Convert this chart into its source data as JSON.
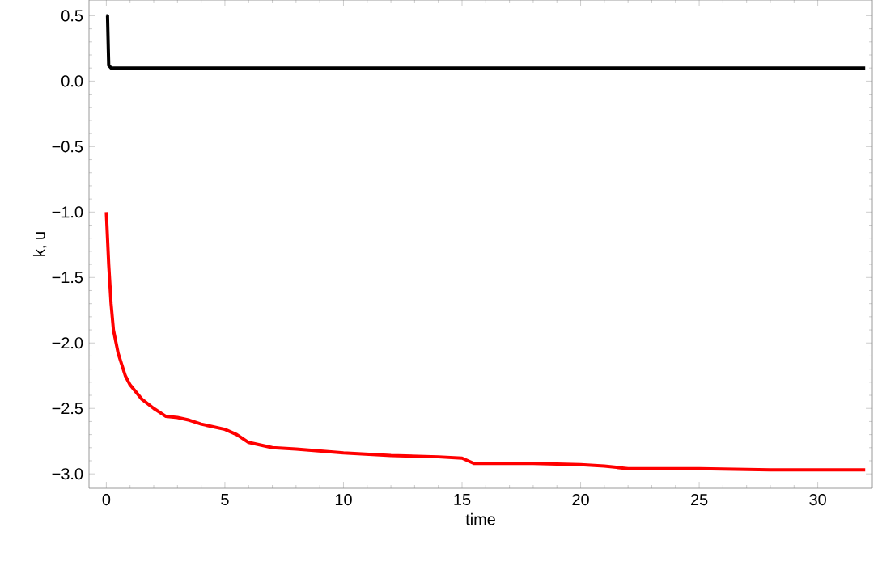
{
  "chart_data": {
    "type": "line",
    "xlabel": "time",
    "ylabel": "k, u",
    "xlim": [
      -0.73,
      32.3
    ],
    "ylim": [
      -3.11,
      0.62
    ],
    "xticks": [
      0,
      5,
      10,
      15,
      20,
      25,
      30
    ],
    "yticks": [
      {
        "value": 0.5,
        "label": "0.5"
      },
      {
        "value": 0,
        "label": "0.0"
      },
      {
        "value": -0.5,
        "label": "−0.5"
      },
      {
        "value": -1,
        "label": "−1.0"
      },
      {
        "value": -1.5,
        "label": "−1.5"
      },
      {
        "value": -2,
        "label": "−2.0"
      },
      {
        "value": -2.5,
        "label": "−2.5"
      },
      {
        "value": -3,
        "label": "−3.0"
      }
    ],
    "grid": false,
    "marker": "none",
    "line_style": "solid",
    "series": [
      {
        "color": "#000000",
        "x": [
          0,
          0.05,
          0.1,
          0.2,
          1,
          2,
          4,
          6,
          8,
          10,
          12,
          14,
          16,
          18,
          20,
          22,
          24,
          26,
          28,
          30,
          32
        ],
        "values": [
          0.5,
          0.5,
          0.12,
          0.1,
          0.1,
          0.1,
          0.1,
          0.1,
          0.1,
          0.1,
          0.1,
          0.1,
          0.1,
          0.1,
          0.1,
          0.1,
          0.1,
          0.1,
          0.1,
          0.1,
          0.1
        ]
      },
      {
        "color": "#ff0000",
        "x": [
          0,
          0.1,
          0.2,
          0.3,
          0.5,
          0.8,
          1,
          1.5,
          2,
          2.5,
          3,
          3.5,
          4,
          5,
          5.5,
          6,
          7,
          8,
          10,
          12,
          14,
          15,
          15.5,
          18,
          20,
          21,
          22,
          25,
          28,
          32
        ],
        "values": [
          -1.0,
          -1.4,
          -1.7,
          -1.9,
          -2.08,
          -2.25,
          -2.32,
          -2.43,
          -2.5,
          -2.56,
          -2.57,
          -2.59,
          -2.62,
          -2.66,
          -2.7,
          -2.76,
          -2.8,
          -2.81,
          -2.84,
          -2.86,
          -2.87,
          -2.88,
          -2.92,
          -2.92,
          -2.93,
          -2.94,
          -2.96,
          -2.96,
          -2.97,
          -2.97
        ]
      }
    ]
  }
}
